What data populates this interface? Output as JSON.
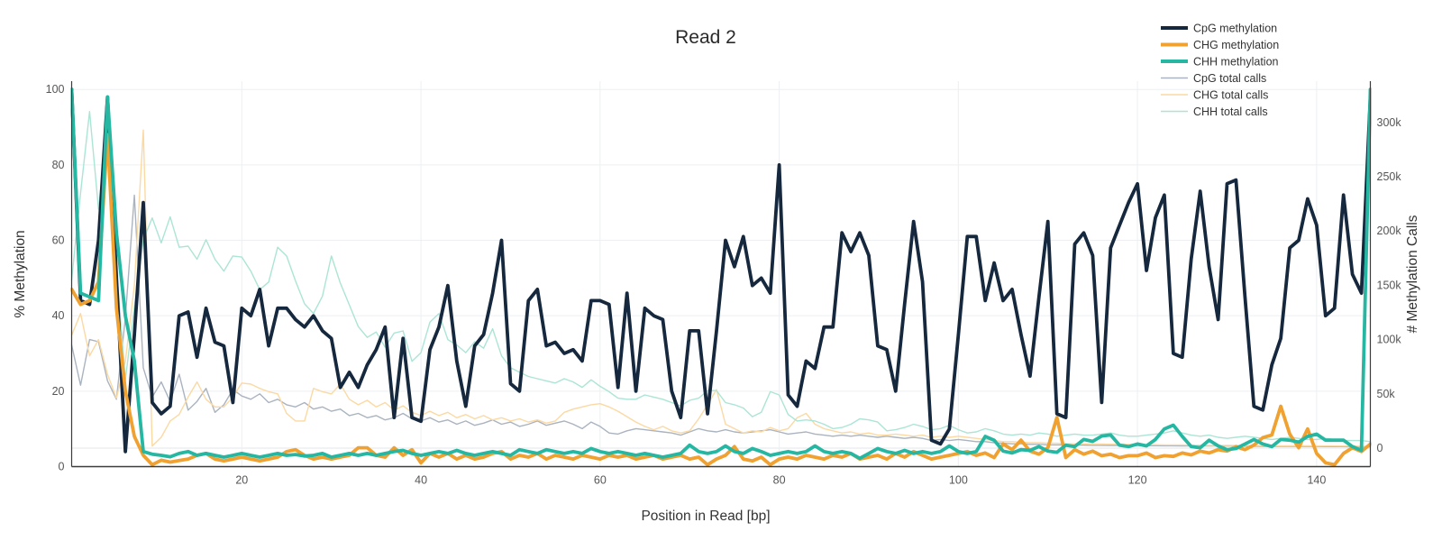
{
  "title": "Read 2",
  "chart_data": {
    "type": "line",
    "title": "Read 2",
    "xlabel": "Position in Read [bp]",
    "ylabel_left": "% Methylation",
    "ylabel_right": "# Methylation Calls",
    "x_range": [
      1,
      146
    ],
    "x_step": 1,
    "x_ticks": [
      20,
      40,
      60,
      80,
      100,
      120,
      140
    ],
    "y_left_ticks": [
      0,
      20,
      40,
      60,
      80,
      100
    ],
    "y_left_range": [
      0,
      102.2
    ],
    "y_right_ticks": [
      0,
      50000,
      100000,
      150000,
      200000,
      250000,
      300000
    ],
    "y_right_tick_labels": [
      "0",
      "50k",
      "100k",
      "150k",
      "200k",
      "250k",
      "300k"
    ],
    "y_right_range": [
      -17000,
      338000
    ],
    "grid": true,
    "legend_position": "top-right",
    "colors": {
      "cpg_meth": "#15283E",
      "chg_meth": "#F0A12F",
      "chh_meth": "#25B7A2",
      "cpg_total": "#AAB3BF",
      "chg_total": "#FBD9A3",
      "chh_total": "#ABE5D5",
      "grid": "#EDEFF2",
      "zero_line": "#E3E6EA",
      "axis_line": "#3B3B3B"
    },
    "series": [
      {
        "name": "CpG methylation",
        "axis": "left",
        "color": "#15283E",
        "width": 3.8,
        "values": [
          100,
          44,
          43,
          60,
          98,
          50,
          4,
          35,
          70,
          17,
          14,
          16,
          40,
          41,
          29,
          42,
          33,
          32,
          17,
          42,
          40,
          47,
          32,
          42,
          42,
          39,
          37,
          40,
          36,
          34,
          21,
          25,
          21,
          27,
          31,
          37,
          13,
          34,
          13,
          12,
          31,
          37,
          48,
          28,
          16,
          32,
          35,
          46,
          60,
          22,
          20,
          44,
          47,
          32,
          33,
          30,
          31,
          28,
          44,
          44,
          43,
          21,
          46,
          20,
          42,
          40,
          39,
          20,
          13,
          36,
          36,
          14,
          36,
          60,
          53,
          61,
          48,
          50,
          46,
          80,
          19,
          16,
          28,
          26,
          37,
          37,
          62,
          57,
          62,
          56,
          32,
          31,
          20,
          43,
          65,
          49,
          7,
          6,
          10,
          35,
          61,
          61,
          44,
          54,
          44,
          47,
          35,
          24,
          45,
          65,
          14,
          13,
          59,
          62,
          56,
          17,
          58,
          64,
          70,
          75,
          52,
          66,
          72,
          30,
          29,
          55,
          73,
          53,
          39,
          75,
          76,
          45,
          16,
          15,
          27,
          34,
          58,
          60,
          71,
          64,
          40,
          42,
          72,
          51,
          46,
          98
        ]
      },
      {
        "name": "CHG methylation",
        "axis": "left",
        "color": "#F0A12F",
        "width": 3.8,
        "values": [
          47,
          43,
          44,
          49,
          88,
          42,
          20,
          8,
          3,
          0.5,
          1.7,
          1.2,
          1.6,
          2,
          3,
          3.5,
          2,
          1.5,
          2,
          2.5,
          2,
          1.5,
          2,
          2.5,
          4,
          4.5,
          3,
          2,
          2.5,
          2,
          2.5,
          3,
          5,
          5,
          3,
          2.5,
          5,
          3,
          4.5,
          1,
          3.5,
          2.5,
          3.5,
          2,
          3,
          2,
          2.5,
          3.5,
          4,
          2,
          3,
          2.5,
          3.5,
          2,
          3,
          2.5,
          2,
          3,
          2.5,
          2,
          3,
          2.5,
          3,
          2,
          2.5,
          3,
          2,
          2.5,
          3,
          2,
          2.5,
          0.5,
          2,
          3,
          5.3,
          2,
          1.5,
          2.5,
          0.5,
          2,
          2.5,
          2,
          3,
          2.5,
          2,
          3,
          2.5,
          3.5,
          2,
          2.5,
          3,
          2,
          3.5,
          2.5,
          4,
          3,
          2,
          2.5,
          3,
          3.5,
          4,
          3,
          3.6,
          2.4,
          6,
          4.5,
          7,
          4.1,
          3.3,
          5,
          13,
          2.4,
          4.5,
          3.3,
          4.1,
          2.9,
          3.3,
          2.4,
          2.9,
          2.9,
          3.6,
          2.4,
          2.9,
          2.7,
          3.6,
          3.1,
          4.1,
          3.6,
          4.5,
          4.1,
          5.3,
          4.5,
          5.7,
          7.7,
          8.4,
          16,
          8.6,
          5,
          10,
          3.5,
          1,
          0.5,
          3.5,
          5,
          4,
          6
        ]
      },
      {
        "name": "CHH methylation",
        "axis": "left",
        "color": "#25B7A2",
        "width": 3.8,
        "values": [
          100,
          46,
          45,
          44,
          98,
          62,
          40,
          28,
          4,
          3.3,
          3,
          2.6,
          3.5,
          4,
          3,
          3.5,
          3,
          2.5,
          3,
          3.5,
          3,
          2.5,
          3,
          3.5,
          3,
          3.2,
          2.8,
          3,
          3.5,
          2.5,
          3,
          3.5,
          3,
          3.5,
          3,
          3.5,
          4,
          4.3,
          3.5,
          3,
          3.5,
          4,
          3.5,
          4.3,
          3.5,
          3,
          3.5,
          4,
          3.5,
          3,
          4.5,
          4,
          3.5,
          4.5,
          4,
          3.5,
          4,
          3.5,
          4.8,
          4,
          3.5,
          4,
          3.5,
          3,
          3.5,
          3,
          2.5,
          3,
          3.5,
          5.7,
          4,
          3.5,
          4,
          5.5,
          4,
          3.5,
          4.8,
          4,
          3,
          3.5,
          4,
          3.5,
          4,
          5.5,
          4,
          3.5,
          4,
          3.5,
          2.2,
          3.5,
          4.8,
          4,
          3.5,
          4.3,
          3.5,
          4,
          3.5,
          4,
          5.5,
          4,
          3.5,
          4,
          8,
          7,
          4.1,
          3.6,
          4.5,
          4.3,
          5.3,
          4.1,
          3.8,
          5.7,
          5.3,
          7.2,
          6.7,
          8.1,
          8.4,
          5.7,
          5.3,
          6,
          5.5,
          7.2,
          10,
          11,
          8,
          5.3,
          5,
          7,
          5.5,
          4.5,
          4.8,
          6,
          7.2,
          6,
          5.3,
          7.2,
          7,
          6.5,
          8,
          8.6,
          7,
          7,
          7,
          5.3,
          4.3,
          100
        ]
      },
      {
        "name": "CpG total calls",
        "axis": "right",
        "color": "#AAB3BF",
        "width": 1.4,
        "values": [
          95000,
          58000,
          100000,
          98000,
          62000,
          45000,
          120000,
          233000,
          74000,
          47000,
          61000,
          43000,
          68000,
          35000,
          43000,
          55000,
          33000,
          40000,
          54000,
          48000,
          45000,
          50000,
          42000,
          45000,
          40000,
          38000,
          42000,
          36000,
          38000,
          34000,
          36000,
          30000,
          32000,
          28000,
          30000,
          26000,
          28000,
          32000,
          27000,
          25000,
          28000,
          24000,
          26000,
          22000,
          25000,
          21000,
          23000,
          26000,
          22000,
          24000,
          20000,
          22000,
          25000,
          21000,
          23000,
          25000,
          22000,
          18000,
          24000,
          20000,
          14000,
          13000,
          16000,
          18000,
          17000,
          16000,
          15000,
          14000,
          12000,
          15000,
          18000,
          16000,
          15000,
          17000,
          15000,
          14000,
          15000,
          16000,
          17000,
          15000,
          13000,
          14000,
          15000,
          13000,
          12000,
          11000,
          12000,
          11000,
          12000,
          11000,
          10000,
          11000,
          10000,
          9000,
          10000,
          9000,
          7000,
          8000,
          7000,
          8000,
          7000,
          6000,
          6000,
          5000,
          4500,
          4000,
          4000,
          3500,
          3500,
          3000,
          3000,
          3000,
          2800,
          2800,
          2600,
          2600,
          2500,
          2500,
          2400,
          2400,
          2300,
          2300,
          2200,
          2200,
          2100,
          2100,
          2000,
          2000,
          2000,
          1900,
          1900,
          1800,
          1800,
          1700,
          1700,
          1600,
          1600,
          1500,
          1500,
          1500,
          1400,
          1400,
          1400,
          1300,
          1300,
          1300
        ]
      },
      {
        "name": "CHG total calls",
        "axis": "right",
        "color": "#FBD9A3",
        "width": 1.4,
        "values": [
          104000,
          124000,
          85000,
          100000,
          68000,
          46000,
          80000,
          150000,
          293000,
          2000,
          10000,
          25000,
          31000,
          47000,
          61000,
          45000,
          38000,
          38000,
          47000,
          60000,
          59000,
          55000,
          52000,
          50000,
          32000,
          25000,
          25000,
          55000,
          52000,
          50000,
          59000,
          45000,
          40000,
          44000,
          38000,
          42000,
          35000,
          39000,
          33000,
          30000,
          34000,
          30000,
          33000,
          28000,
          31000,
          27000,
          30000,
          26000,
          28000,
          25000,
          27000,
          24000,
          26000,
          23000,
          25000,
          33000,
          36000,
          38000,
          40000,
          41000,
          38000,
          34000,
          29000,
          24000,
          20000,
          17000,
          20000,
          16000,
          14000,
          16000,
          27000,
          40000,
          54000,
          22000,
          18000,
          14000,
          16000,
          15000,
          19000,
          16000,
          18000,
          28000,
          32000,
          22000,
          18000,
          16000,
          14000,
          15000,
          13000,
          14000,
          12000,
          12000,
          13000,
          12000,
          11000,
          12000,
          10000,
          11000,
          10000,
          11000,
          10000,
          9000,
          8000,
          7000,
          6000,
          6000,
          5500,
          5000,
          5000,
          4500,
          4500,
          4000,
          4000,
          4000,
          3800,
          3800,
          3600,
          3600,
          3400,
          3400,
          3200,
          3200,
          3000,
          3000,
          3000,
          2800,
          2800,
          2600,
          2600,
          2500,
          2500,
          2400,
          2400,
          2300,
          2300,
          2200,
          2200,
          2100,
          2100,
          2000,
          2000,
          2000,
          1900,
          1900,
          1800,
          1800
        ]
      },
      {
        "name": "CHH total calls",
        "axis": "right",
        "color": "#ABE5D5",
        "width": 1.4,
        "values": [
          155000,
          235000,
          310000,
          220000,
          300000,
          166000,
          63000,
          130000,
          192000,
          212000,
          189000,
          213000,
          185000,
          186000,
          174000,
          192000,
          174000,
          163000,
          177000,
          176000,
          163000,
          146000,
          153000,
          185000,
          177000,
          154000,
          133000,
          124000,
          140000,
          177000,
          152000,
          132000,
          112000,
          102000,
          107000,
          93000,
          106000,
          108000,
          80000,
          88000,
          116000,
          124000,
          100000,
          95000,
          88000,
          98000,
          92000,
          110000,
          85000,
          74000,
          70000,
          66000,
          64000,
          62000,
          60000,
          64000,
          61000,
          56000,
          63000,
          57000,
          52000,
          46000,
          45000,
          45000,
          49000,
          47000,
          45000,
          42000,
          39000,
          44000,
          46000,
          53000,
          53000,
          42000,
          40000,
          37000,
          29000,
          33000,
          52000,
          49000,
          31000,
          25000,
          26000,
          25000,
          22000,
          18000,
          19000,
          22000,
          27000,
          26000,
          24000,
          16000,
          17000,
          19000,
          22000,
          20000,
          17000,
          18000,
          21000,
          17000,
          14000,
          15000,
          18000,
          16000,
          13000,
          12000,
          13000,
          12000,
          14000,
          13000,
          11000,
          12000,
          13000,
          12000,
          12000,
          13000,
          14000,
          12000,
          11000,
          11000,
          12000,
          13000,
          14000,
          16000,
          14000,
          12000,
          11000,
          12000,
          10000,
          9000,
          10000,
          11000,
          10000,
          9000,
          8000,
          9000,
          10000,
          9000,
          8000,
          8000,
          9000,
          8000,
          7000,
          7000,
          7000,
          6000
        ]
      }
    ]
  }
}
